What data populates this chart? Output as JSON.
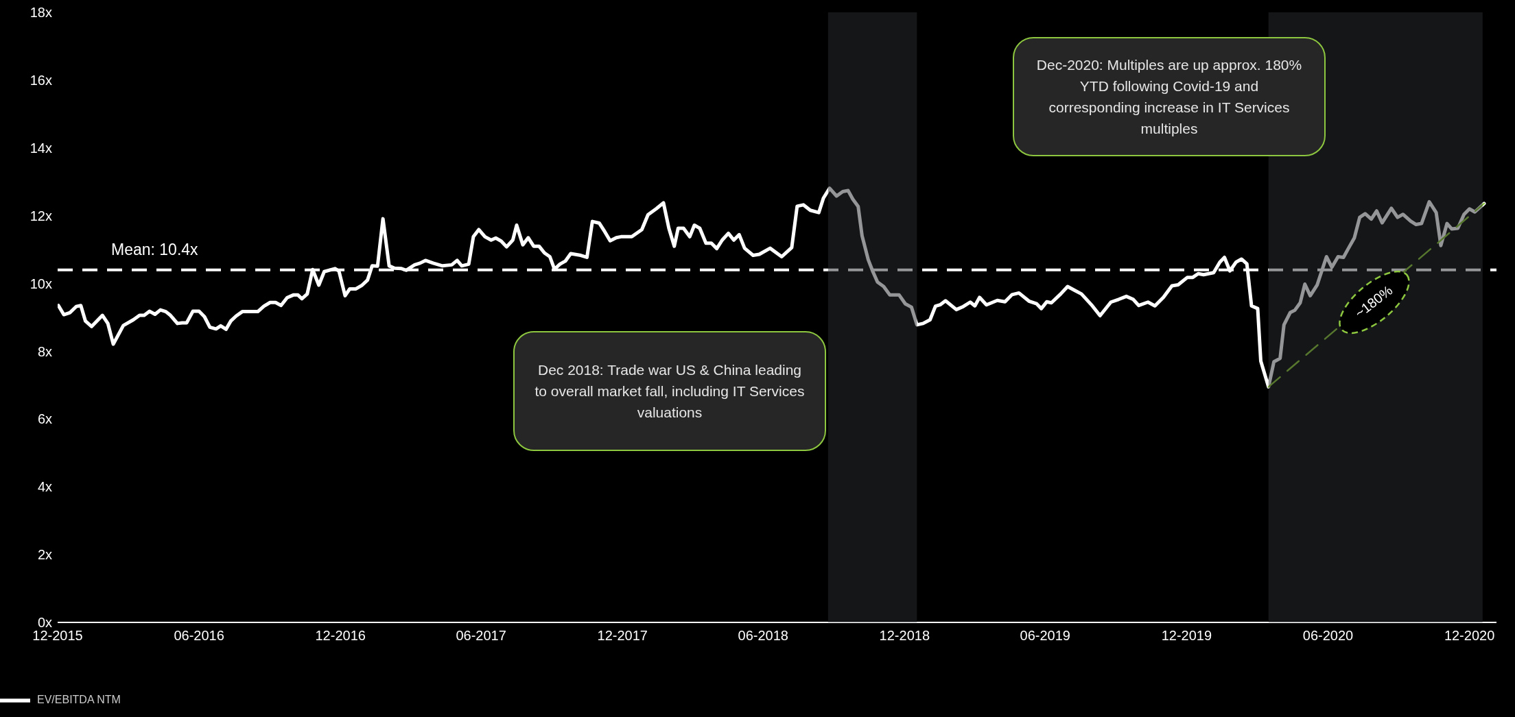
{
  "chart_data": {
    "type": "line",
    "x": [
      "2015-12-02",
      "2015-12-09",
      "2015-12-17",
      "2015-12-25",
      "2015-12-31",
      "2016-01-06",
      "2016-01-14",
      "2016-01-28",
      "2016-02-04",
      "2016-02-11",
      "2016-02-24",
      "2016-03-08",
      "2016-03-16",
      "2016-03-22",
      "2016-03-29",
      "2016-04-05",
      "2016-04-12",
      "2016-04-19",
      "2016-04-25",
      "2016-05-04",
      "2016-05-10",
      "2016-05-16",
      "2016-05-24",
      "2016-06-01",
      "2016-06-08",
      "2016-06-15",
      "2016-06-23",
      "2016-06-29",
      "2016-07-06",
      "2016-07-12",
      "2016-07-19",
      "2016-07-27",
      "2016-08-16",
      "2016-08-24",
      "2016-09-01",
      "2016-09-08",
      "2016-09-15",
      "2016-09-23",
      "2016-10-01",
      "2016-10-07",
      "2016-10-12",
      "2016-10-19",
      "2016-10-26",
      "2016-11-03",
      "2016-11-10",
      "2016-11-24",
      "2016-11-29",
      "2016-12-07",
      "2016-12-13",
      "2016-12-21",
      "2016-12-29",
      "2017-01-05",
      "2017-01-11",
      "2017-01-18",
      "2017-01-25",
      "2017-02-02",
      "2017-02-09",
      "2017-02-18",
      "2017-02-24",
      "2017-03-07",
      "2017-03-14",
      "2017-03-21",
      "2017-03-31",
      "2017-04-12",
      "2017-04-24",
      "2017-05-01",
      "2017-05-07",
      "2017-05-16",
      "2017-05-22",
      "2017-05-29",
      "2017-06-06",
      "2017-06-14",
      "2017-06-20",
      "2017-06-27",
      "2017-07-04",
      "2017-07-12",
      "2017-07-17",
      "2017-07-25",
      "2017-08-01",
      "2017-08-08",
      "2017-08-15",
      "2017-08-22",
      "2017-08-29",
      "2017-09-04",
      "2017-09-11",
      "2017-09-18",
      "2017-09-25",
      "2017-10-08",
      "2017-10-16",
      "2017-10-23",
      "2017-11-01",
      "2017-11-08",
      "2017-11-15",
      "2017-11-23",
      "2017-11-29",
      "2017-12-13",
      "2017-12-26",
      "2018-01-03",
      "2018-01-14",
      "2018-01-23",
      "2018-01-30",
      "2018-02-06",
      "2018-02-11",
      "2018-02-18",
      "2018-02-26",
      "2018-03-04",
      "2018-03-11",
      "2018-03-19",
      "2018-03-26",
      "2018-04-02",
      "2018-04-09",
      "2018-04-17",
      "2018-04-24",
      "2018-05-01",
      "2018-05-08",
      "2018-05-19",
      "2018-05-27",
      "2018-06-10",
      "2018-06-25",
      "2018-07-08",
      "2018-07-15",
      "2018-07-23",
      "2018-08-01",
      "2018-08-12",
      "2018-08-18",
      "2018-08-26",
      "2018-09-04",
      "2018-09-12",
      "2018-09-19",
      "2018-09-25",
      "2018-10-02",
      "2018-10-07",
      "2018-10-15",
      "2018-10-21",
      "2018-10-27",
      "2018-11-04",
      "2018-11-12",
      "2018-11-24",
      "2018-12-02",
      "2018-12-10",
      "2018-12-17",
      "2018-12-25",
      "2019-01-03",
      "2019-01-10",
      "2019-01-16",
      "2019-01-23",
      "2019-02-06",
      "2019-02-15",
      "2019-02-24",
      "2019-03-02",
      "2019-03-08",
      "2019-03-17",
      "2019-03-31",
      "2019-04-10",
      "2019-04-19",
      "2019-04-28",
      "2019-05-11",
      "2019-05-21",
      "2019-05-27",
      "2019-06-03",
      "2019-06-09",
      "2019-06-21",
      "2019-06-30",
      "2019-07-09",
      "2019-07-18",
      "2019-08-01",
      "2019-08-11",
      "2019-08-25",
      "2019-09-04",
      "2019-09-14",
      "2019-09-23",
      "2019-09-30",
      "2019-10-12",
      "2019-10-21",
      "2019-11-01",
      "2019-11-12",
      "2019-11-20",
      "2019-12-02",
      "2019-12-09",
      "2019-12-16",
      "2019-12-23",
      "2020-01-05",
      "2020-01-13",
      "2020-01-19",
      "2020-01-26",
      "2020-02-03",
      "2020-02-10",
      "2020-02-17",
      "2020-02-23",
      "2020-03-02",
      "2020-03-06",
      "2020-03-16",
      "2020-03-23",
      "2020-03-31",
      "2020-04-05",
      "2020-04-13",
      "2020-04-19",
      "2020-04-26",
      "2020-05-02",
      "2020-05-09",
      "2020-05-18",
      "2020-05-30",
      "2020-06-06",
      "2020-06-14",
      "2020-06-21",
      "2020-06-27",
      "2020-07-05",
      "2020-07-12",
      "2020-07-19",
      "2020-07-27",
      "2020-08-03",
      "2020-08-10",
      "2020-08-22",
      "2020-08-30",
      "2020-09-06",
      "2020-09-16",
      "2020-09-23",
      "2020-09-30",
      "2020-10-10",
      "2020-10-19",
      "2020-10-25",
      "2020-11-02",
      "2020-11-08",
      "2020-11-16",
      "2020-11-24",
      "2020-12-01",
      "2020-12-08",
      "2020-12-20"
    ],
    "series": [
      {
        "name": "EV/EBITDA NTM",
        "color": "#ffffff",
        "values": [
          9.35,
          9.08,
          9.14,
          9.32,
          9.35,
          8.89,
          8.73,
          9.06,
          8.82,
          8.21,
          8.76,
          8.93,
          9.06,
          9.06,
          9.18,
          9.09,
          9.22,
          9.17,
          9.06,
          8.82,
          8.84,
          8.84,
          9.18,
          9.18,
          9.02,
          8.71,
          8.66,
          8.75,
          8.65,
          8.89,
          9.04,
          9.17,
          9.17,
          9.33,
          9.44,
          9.44,
          9.35,
          9.58,
          9.66,
          9.66,
          9.55,
          9.69,
          10.41,
          9.95,
          10.35,
          10.44,
          10.37,
          9.64,
          9.84,
          9.84,
          9.95,
          10.1,
          10.52,
          10.51,
          11.91,
          10.52,
          10.45,
          10.44,
          10.39,
          10.55,
          10.6,
          10.68,
          10.6,
          10.52,
          10.55,
          10.68,
          10.52,
          10.57,
          11.38,
          11.59,
          11.38,
          11.28,
          11.34,
          11.25,
          11.08,
          11.28,
          11.72,
          11.14,
          11.35,
          11.1,
          11.1,
          10.9,
          10.79,
          10.42,
          10.57,
          10.66,
          10.88,
          10.83,
          10.77,
          11.83,
          11.78,
          11.53,
          11.26,
          11.35,
          11.38,
          11.38,
          11.59,
          12.03,
          12.21,
          12.38,
          11.63,
          11.1,
          11.63,
          11.63,
          11.38,
          11.72,
          11.63,
          11.19,
          11.19,
          11.03,
          11.28,
          11.48,
          11.28,
          11.44,
          11.04,
          10.83,
          10.86,
          11.04,
          10.79,
          11.06,
          12.28,
          12.32,
          12.16,
          12.09,
          12.52,
          12.81,
          12.58,
          12.71,
          12.74,
          12.49,
          12.27,
          11.41,
          10.7,
          10.35,
          10.04,
          9.91,
          9.66,
          9.66,
          9.4,
          9.3,
          8.78,
          8.82,
          8.93,
          9.33,
          9.37,
          9.49,
          9.23,
          9.32,
          9.45,
          9.34,
          9.59,
          9.37,
          9.5,
          9.46,
          9.67,
          9.72,
          9.48,
          9.4,
          9.26,
          9.46,
          9.43,
          9.69,
          9.91,
          9.8,
          9.69,
          9.34,
          9.05,
          9.45,
          9.53,
          9.62,
          9.53,
          9.35,
          9.45,
          9.34,
          9.59,
          9.93,
          9.96,
          10.18,
          10.18,
          10.29,
          10.26,
          10.32,
          10.63,
          10.77,
          10.37,
          10.63,
          10.72,
          10.58,
          9.34,
          9.26,
          7.71,
          6.95,
          7.69,
          7.79,
          8.78,
          9.14,
          9.21,
          9.43,
          9.98,
          9.64,
          9.96,
          10.79,
          10.48,
          10.79,
          10.77,
          11.02,
          11.34,
          11.95,
          12.06,
          11.9,
          12.14,
          11.79,
          12.22,
          11.95,
          12.04,
          11.84,
          11.74,
          11.77,
          12.41,
          12.09,
          11.12,
          11.77,
          11.61,
          11.63,
          12.04,
          12.2,
          12.11,
          12.36
        ]
      },
      {
        "type": "line",
        "color": "#8dc63f",
        "line_style": "dashed",
        "x": [
          "2020-03-16",
          "2020-12-20"
        ],
        "values": [
          6.95,
          12.36
        ]
      }
    ],
    "xlim": [
      "2015-12-01",
      "2021-01-05"
    ],
    "xticks": [
      {
        "value": "2015-12-01",
        "label": "12-2015"
      },
      {
        "value": "2016-06-01",
        "label": "06-2016"
      },
      {
        "value": "2016-12-01",
        "label": "12-2016"
      },
      {
        "value": "2017-06-01",
        "label": "06-2017"
      },
      {
        "value": "2017-12-01",
        "label": "12-2017"
      },
      {
        "value": "2018-06-01",
        "label": "06-2018"
      },
      {
        "value": "2018-12-01",
        "label": "12-2018"
      },
      {
        "value": "2019-06-01",
        "label": "06-2019"
      },
      {
        "value": "2019-12-01",
        "label": "12-2019"
      },
      {
        "value": "2020-06-01",
        "label": "06-2020"
      },
      {
        "value": "2020-12-01",
        "label": "12-2020"
      }
    ],
    "ylim": [
      0,
      18
    ],
    "yticks": [
      {
        "value": 0,
        "label": "0x"
      },
      {
        "value": 2,
        "label": "2x"
      },
      {
        "value": 4,
        "label": "4x"
      },
      {
        "value": 6,
        "label": "6x"
      },
      {
        "value": 8,
        "label": "8x"
      },
      {
        "value": 10,
        "label": "10x"
      },
      {
        "value": 12,
        "label": "12x"
      },
      {
        "value": 14,
        "label": "14x"
      },
      {
        "value": 16,
        "label": "16x"
      },
      {
        "value": 18,
        "label": "18x"
      }
    ],
    "ref_lines": [
      {
        "axis": "y",
        "value": 10.4,
        "label": "Mean: 10.4x",
        "color": "#ffffff",
        "line_style": "dashed"
      }
    ],
    "bands": [
      {
        "axis": "x",
        "from": "2018-08-24",
        "to": "2018-12-17",
        "color": "#151618"
      },
      {
        "axis": "x",
        "from": "2020-03-16",
        "to": "2020-12-18",
        "color": "#151618"
      }
    ],
    "annotations": [
      "Dec 2018: Trade war US & China leading to overall market fall, including IT Services valuations",
      "Dec-2020: Multiples are up approx. 180% YTD following Covid-19 and corresponding increase in IT Services multiples",
      "~180%"
    ],
    "legend": "bottom left",
    "grid": false,
    "marker": "none",
    "line_style": "solid"
  }
}
